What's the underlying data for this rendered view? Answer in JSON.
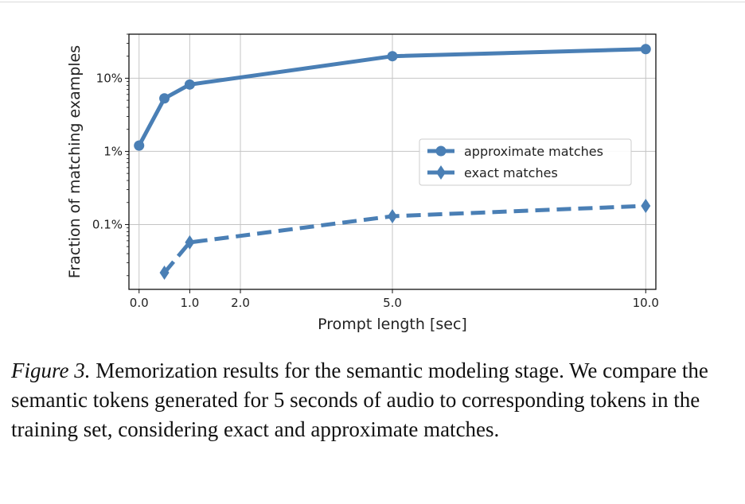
{
  "chart_data": {
    "type": "line",
    "xlabel": "Prompt length [sec]",
    "ylabel": "Fraction of matching examples",
    "y_scale": "log",
    "xlim": [
      -0.2,
      10.2
    ],
    "ylim": [
      0.013,
      40
    ],
    "x_ticks": [
      0.0,
      1.0,
      2.0,
      5.0,
      10.0
    ],
    "x_tick_labels": [
      "0.0",
      "1.0",
      "2.0",
      "5.0",
      "10.0"
    ],
    "y_ticks": [
      0.1,
      1,
      10
    ],
    "y_tick_labels": [
      "0.1%",
      "1%",
      "10%"
    ],
    "grid": true,
    "legend_position": "center-right",
    "series": [
      {
        "name": "approximate matches",
        "style": "solid",
        "marker": "circle",
        "color": "#4a7fb5",
        "x": [
          0.0,
          0.5,
          1.0,
          5.0,
          10.0
        ],
        "y": [
          1.2,
          5.3,
          8.2,
          20,
          25
        ]
      },
      {
        "name": "exact matches",
        "style": "dashed",
        "marker": "diamond",
        "color": "#4a7fb5",
        "x": [
          0.5,
          1.0,
          5.0,
          10.0
        ],
        "y": [
          0.022,
          0.057,
          0.13,
          0.18
        ]
      }
    ]
  },
  "caption": {
    "label": "Figure 3.",
    "text": " Memorization results for the semantic modeling stage. We compare the semantic tokens generated for 5 seconds of audio to corresponding tokens in the training set, considering exact and approximate matches."
  }
}
